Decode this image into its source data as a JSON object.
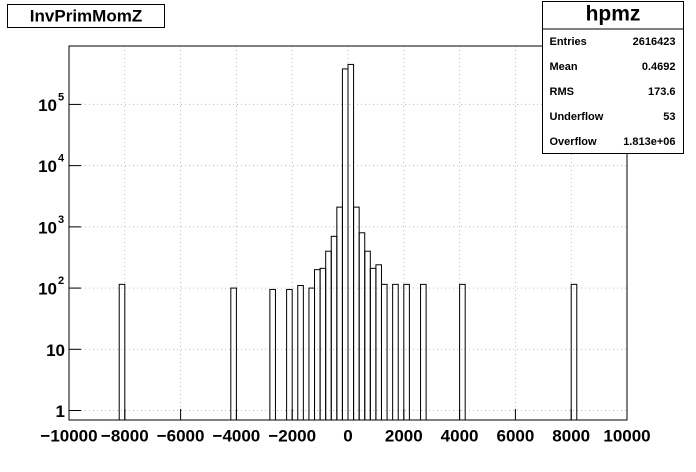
{
  "chart_data": {
    "type": "histogram",
    "title": "InvPrimMomZ",
    "bins": [
      -10000,
      -9800,
      -9600,
      -9400,
      -9200,
      -9000,
      -8800,
      -8600,
      -8400,
      -8200,
      -8000,
      -7800,
      -7600,
      -7400,
      -7200,
      -7000,
      -6800,
      -6600,
      -6400,
      -6200,
      -6000,
      -5800,
      -5600,
      -5400,
      -5200,
      -5000,
      -4800,
      -4600,
      -4400,
      -4200,
      -4000,
      -3800,
      -3600,
      -3400,
      -3200,
      -3000,
      -2800,
      -2600,
      -2400,
      -2200,
      -2000,
      -1800,
      -1600,
      -1400,
      -1200,
      -1000,
      -800,
      -600,
      -400,
      -200,
      0,
      200,
      400,
      600,
      800,
      1000,
      1200,
      1400,
      1600,
      1800,
      2000,
      2200,
      2400,
      2600,
      2800,
      3000,
      3200,
      3400,
      3600,
      3800,
      4000,
      4200,
      4400,
      4600,
      4800,
      5000,
      5200,
      5400,
      5600,
      5800,
      6000,
      6200,
      6400,
      6600,
      6800,
      7000,
      7200,
      7400,
      7600,
      7800,
      8000,
      8200,
      8400,
      8600,
      8800,
      9000,
      9200,
      9400,
      9600,
      9800,
      10000
    ],
    "values": [
      0,
      0,
      0,
      0,
      0,
      0,
      0,
      0,
      0,
      115,
      0,
      0,
      0,
      0,
      0,
      0,
      0,
      0,
      0,
      0,
      0,
      0,
      0,
      0,
      0,
      0,
      0,
      0,
      0,
      100,
      0,
      0,
      0,
      0,
      0,
      0,
      95,
      0,
      0,
      95,
      0,
      110,
      0,
      100,
      200,
      210,
      400,
      700,
      2100,
      380000,
      450000,
      2100,
      800,
      400,
      210,
      240,
      115,
      0,
      115,
      0,
      115,
      0,
      0,
      115,
      0,
      0,
      0,
      0,
      0,
      0,
      115,
      0,
      0,
      0,
      0,
      0,
      0,
      0,
      0,
      0,
      0,
      0,
      0,
      0,
      0,
      0,
      0,
      0,
      0,
      0,
      115,
      0,
      0,
      0,
      0,
      0,
      0,
      0,
      0,
      0
    ],
    "color": "#000000",
    "xlim": [
      -10000,
      10000
    ],
    "xticks": [
      {
        "value": -10000,
        "label": "−10000"
      },
      {
        "value": -8000,
        "label": "−8000"
      },
      {
        "value": -6000,
        "label": "−6000"
      },
      {
        "value": -4000,
        "label": "−4000"
      },
      {
        "value": -2000,
        "label": "−2000"
      },
      0,
      2000,
      4000,
      6000,
      8000,
      10000
    ],
    "ylim": [
      0.7,
      900000
    ],
    "log_y": true,
    "yticks": [
      1,
      10,
      {
        "value": 100,
        "label": "10",
        "exponent": "2"
      },
      {
        "value": 1000,
        "label": "10",
        "exponent": "3"
      },
      {
        "value": 10000,
        "label": "10",
        "exponent": "4"
      },
      {
        "value": 100000,
        "label": "10",
        "exponent": "5"
      }
    ],
    "grid": true,
    "stats": {
      "title": "hpmz",
      "rows": [
        {
          "label": "Entries",
          "value": "2616423"
        },
        {
          "label": "Mean",
          "value": "0.4692"
        },
        {
          "label": "RMS",
          "value": "173.6"
        },
        {
          "label": "Underflow",
          "value": "53"
        },
        {
          "label": "Overflow",
          "value": "1.813e+06"
        }
      ]
    }
  }
}
